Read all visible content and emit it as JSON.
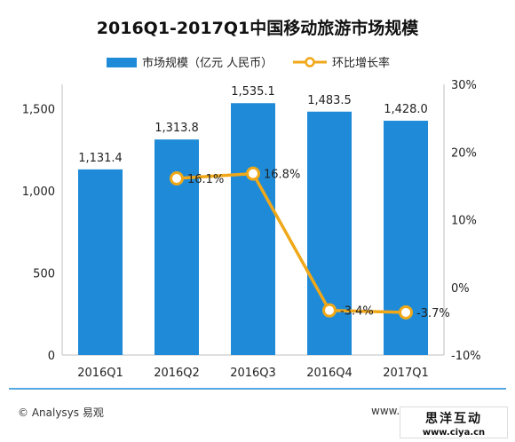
{
  "chart_data": {
    "type": "bar+line",
    "title": "2016Q1-2017Q1中国移动旅游市场规模",
    "categories": [
      "2016Q1",
      "2016Q2",
      "2016Q3",
      "2016Q4",
      "2017Q1"
    ],
    "series": [
      {
        "name": "市场规模（亿元 人民币）",
        "type": "bar",
        "axis": "left",
        "values": [
          1131.4,
          1313.8,
          1535.1,
          1483.5,
          1428.0
        ],
        "labels": [
          "1,131.4",
          "1,313.8",
          "1,535.1",
          "1,483.5",
          "1,428.0"
        ]
      },
      {
        "name": "环比增长率",
        "type": "line",
        "axis": "right",
        "values": [
          null,
          16.1,
          16.8,
          -3.4,
          -3.7
        ],
        "labels": [
          "",
          "16.1%",
          "16.8%",
          "-3.4%",
          "-3.7%"
        ]
      }
    ],
    "y_left": {
      "min": 0,
      "max": 1500,
      "ticks": [
        0,
        500,
        1000,
        1500
      ],
      "tick_labels": [
        "0",
        "500",
        "1,000",
        "1,500"
      ]
    },
    "y_right": {
      "min": -10,
      "max": 30,
      "ticks": [
        -10,
        0,
        10,
        20,
        30
      ],
      "tick_labels": [
        "-10%",
        "0%",
        "10%",
        "20%",
        "30%"
      ]
    },
    "legend_position": "top",
    "grid": false,
    "colors": {
      "bar": "#1f8bd8",
      "line": "#f0a818",
      "marker_fill": "#ffffff"
    }
  },
  "footer": {
    "credit": "© Analysys 易观",
    "url": "www."
  },
  "stamp": {
    "title": "思洋互动",
    "url": "www.ciya.cn"
  }
}
